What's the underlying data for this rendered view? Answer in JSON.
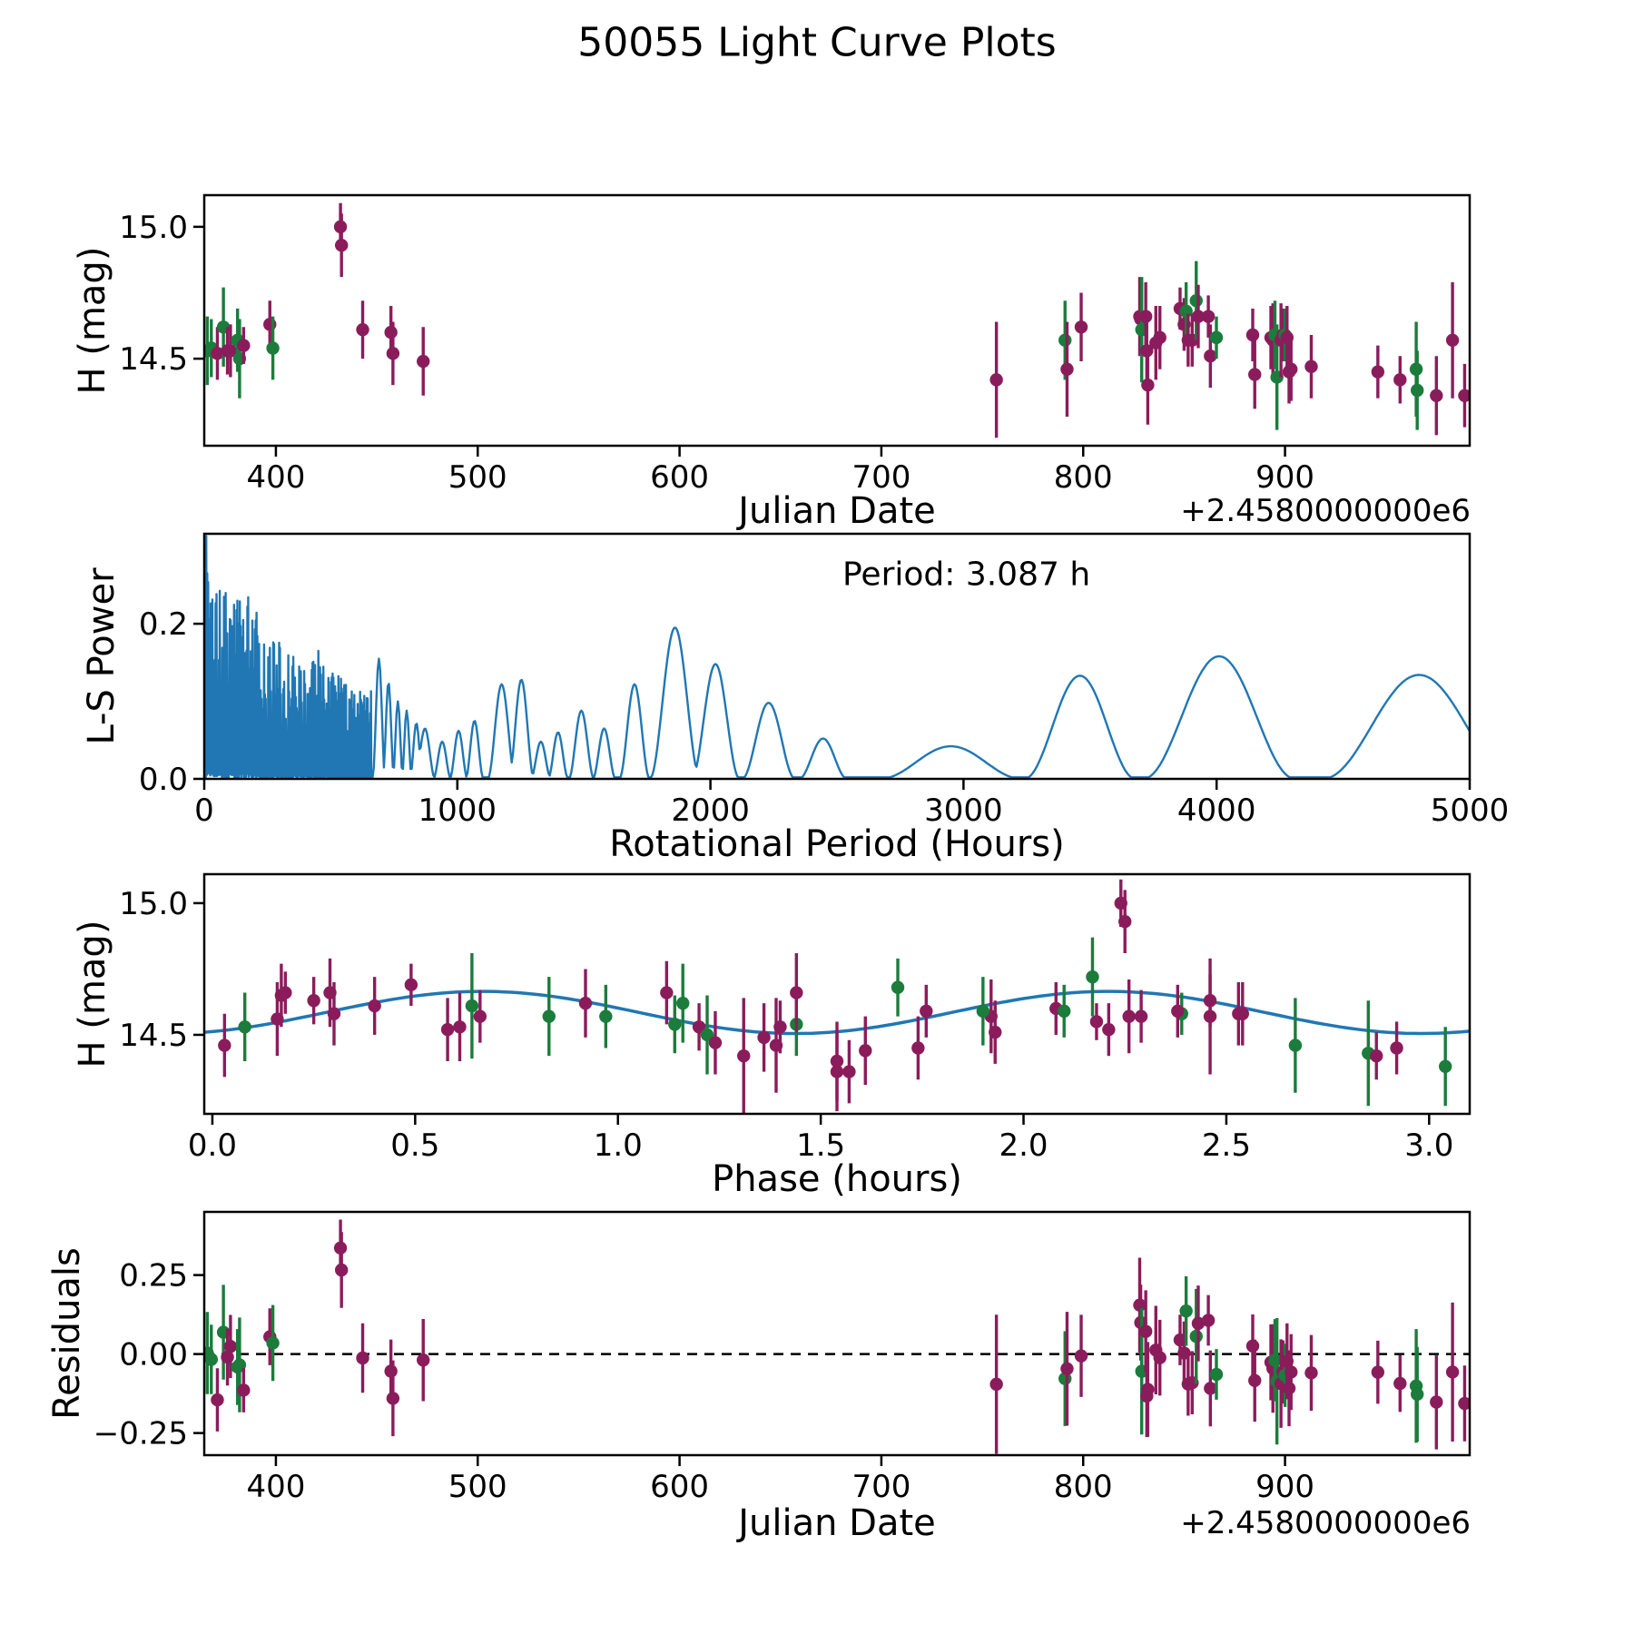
{
  "chart_data": {
    "type": "multi-panel-light-curve",
    "title": "50055 Light Curve Plots",
    "period_hours": 3.087,
    "period_label": "Period: 3.087 h",
    "colors": {
      "purple": "#8B1C5C",
      "green": "#1B7C3B",
      "blue": "#2077B4",
      "axis": "#000000"
    },
    "panels": [
      {
        "id": "jd",
        "type": "errorbar-scatter",
        "xlabel": "Julian Date",
        "ylabel": "H (mag)",
        "x_offset_label": "+2.4580000000e6",
        "xlim": [
          364.5,
          991.5
        ],
        "ylim": [
          14.17,
          15.12
        ],
        "xtick_values": [
          400,
          500,
          600,
          700,
          800,
          900
        ],
        "xtick_labels": [
          "400",
          "500",
          "600",
          "700",
          "800",
          "900"
        ],
        "ytick_values": [
          15.0,
          14.5
        ],
        "ytick_labels": [
          "15.0",
          "14.5"
        ],
        "x_field": "jd",
        "y_field": "mag"
      },
      {
        "id": "periodogram",
        "type": "line",
        "xlabel": "Rotational Period (Hours)",
        "ylabel": "L-S Power",
        "annotation": "Period: 3.087 h",
        "xlim": [
          0,
          5000
        ],
        "ylim": [
          0,
          0.316
        ],
        "xtick_values": [
          0,
          1000,
          2000,
          3000,
          4000,
          5000
        ],
        "xtick_labels": [
          "0",
          "1000",
          "2000",
          "3000",
          "4000",
          "5000"
        ],
        "ytick_values": [
          0.0,
          0.2
        ],
        "ytick_labels": [
          "0.0",
          "0.2"
        ],
        "dense_region": {
          "x_end": 660,
          "envelope": [
            [
              0,
              0.31
            ],
            [
              20,
              0.31
            ],
            [
              40,
              0.29
            ],
            [
              80,
              0.26
            ],
            [
              120,
              0.24
            ],
            [
              160,
              0.25
            ],
            [
              200,
              0.22
            ],
            [
              250,
              0.19
            ],
            [
              300,
              0.175
            ],
            [
              350,
              0.16
            ],
            [
              400,
              0.15
            ],
            [
              450,
              0.18
            ],
            [
              500,
              0.15
            ],
            [
              550,
              0.13
            ],
            [
              600,
              0.12
            ],
            [
              660,
              0.12
            ]
          ]
        },
        "lobes": [
          [
            690,
            25,
            0.155
          ],
          [
            728,
            22,
            0.125
          ],
          [
            765,
            20,
            0.1
          ],
          [
            800,
            20,
            0.088
          ],
          [
            838,
            25,
            0.072
          ],
          [
            872,
            40,
            0.065
          ],
          [
            940,
            35,
            0.048
          ],
          [
            1005,
            35,
            0.062
          ],
          [
            1068,
            35,
            0.075
          ],
          [
            1175,
            55,
            0.122
          ],
          [
            1253,
            50,
            0.128
          ],
          [
            1330,
            40,
            0.048
          ],
          [
            1398,
            40,
            0.06
          ],
          [
            1490,
            50,
            0.088
          ],
          [
            1580,
            45,
            0.065
          ],
          [
            1700,
            60,
            0.122
          ],
          [
            1860,
            100,
            0.195
          ],
          [
            2020,
            95,
            0.148
          ],
          [
            2230,
            105,
            0.098
          ],
          [
            2445,
            95,
            0.052
          ],
          [
            2950,
            280,
            0.042
          ],
          [
            3460,
            220,
            0.133
          ],
          [
            4010,
            300,
            0.158
          ],
          [
            4800,
            380,
            0.134
          ]
        ]
      },
      {
        "id": "phase",
        "type": "errorbar-scatter",
        "xlabel": "Phase (hours)",
        "ylabel": "H (mag)",
        "xlim": [
          -0.02,
          3.1
        ],
        "ylim": [
          14.2,
          15.11
        ],
        "xtick_values": [
          0.0,
          0.5,
          1.0,
          1.5,
          2.0,
          2.5,
          3.0
        ],
        "xtick_labels": [
          "0.0",
          "0.5",
          "1.0",
          "1.5",
          "2.0",
          "2.5",
          "3.0"
        ],
        "ytick_values": [
          15.0,
          14.5
        ],
        "ytick_labels": [
          "15.0",
          "14.5"
        ],
        "x_field": "phase",
        "y_field": "mag",
        "model_curve": {
          "mean": 14.585,
          "amplitude": 0.08,
          "period_hours": 1.5435,
          "phase_offset": 0.28,
          "x_start": -0.02,
          "x_end": 3.1
        }
      },
      {
        "id": "residuals",
        "type": "errorbar-scatter",
        "xlabel": "Julian Date",
        "ylabel": "Residuals",
        "x_offset_label": "+2.4580000000e6",
        "xlim": [
          364.5,
          991.5
        ],
        "ylim": [
          -0.32,
          0.45
        ],
        "xtick_values": [
          400,
          500,
          600,
          700,
          800,
          900
        ],
        "xtick_labels": [
          "400",
          "500",
          "600",
          "700",
          "800",
          "900"
        ],
        "ytick_values": [
          0.25,
          0.0,
          -0.25
        ],
        "ytick_labels": [
          "0.25",
          "0.00",
          "−0.25"
        ],
        "x_field": "jd",
        "y_field": "residual",
        "zero_line": true
      }
    ],
    "observations": {
      "fields": [
        "jd",
        "phase",
        "mag",
        "err",
        "band"
      ],
      "rows": [
        [
          366.0,
          0.08,
          14.53,
          0.13,
          "green"
        ],
        [
          368.0,
          1.14,
          14.54,
          0.11,
          "green"
        ],
        [
          371.0,
          2.21,
          14.52,
          0.1,
          "purple"
        ],
        [
          374.0,
          1.16,
          14.62,
          0.15,
          "green"
        ],
        [
          376.0,
          1.2,
          14.53,
          0.09,
          "purple"
        ],
        [
          377.5,
          1.4,
          14.53,
          0.1,
          "purple"
        ],
        [
          381.0,
          0.97,
          14.57,
          0.12,
          "green"
        ],
        [
          382.0,
          1.22,
          14.5,
          0.15,
          "green"
        ],
        [
          384.0,
          2.18,
          14.55,
          0.07,
          "purple"
        ],
        [
          397.0,
          0.25,
          14.63,
          0.09,
          "purple"
        ],
        [
          398.5,
          1.44,
          14.54,
          0.12,
          "green"
        ],
        [
          432.0,
          2.24,
          15.0,
          0.09,
          "purple"
        ],
        [
          432.5,
          2.25,
          14.93,
          0.12,
          "purple"
        ],
        [
          443.0,
          0.4,
          14.61,
          0.11,
          "purple"
        ],
        [
          457.0,
          2.08,
          14.6,
          0.1,
          "purple"
        ],
        [
          458.0,
          0.58,
          14.52,
          0.12,
          "purple"
        ],
        [
          473.0,
          1.36,
          14.49,
          0.13,
          "purple"
        ],
        [
          757.0,
          1.31,
          14.42,
          0.22,
          "purple"
        ],
        [
          791.0,
          0.83,
          14.57,
          0.15,
          "green"
        ],
        [
          792.0,
          1.39,
          14.46,
          0.18,
          "purple"
        ],
        [
          799.0,
          0.92,
          14.62,
          0.13,
          "purple"
        ],
        [
          828.0,
          1.44,
          14.66,
          0.15,
          "purple"
        ],
        [
          828.5,
          0.17,
          14.65,
          0.12,
          "purple"
        ],
        [
          829.0,
          0.64,
          14.61,
          0.2,
          "green"
        ],
        [
          831.0,
          0.29,
          14.66,
          0.13,
          "purple"
        ],
        [
          831.5,
          0.61,
          14.53,
          0.13,
          "purple"
        ],
        [
          832.0,
          1.54,
          14.4,
          0.15,
          "purple"
        ],
        [
          836.0,
          0.16,
          14.56,
          0.14,
          "purple"
        ],
        [
          838.0,
          0.3,
          14.58,
          0.12,
          "purple"
        ],
        [
          848.0,
          0.49,
          14.69,
          0.08,
          "purple"
        ],
        [
          850.0,
          2.46,
          14.63,
          0.1,
          "purple"
        ],
        [
          851.0,
          1.69,
          14.68,
          0.11,
          "green"
        ],
        [
          852.0,
          0.66,
          14.57,
          0.1,
          "purple"
        ],
        [
          854.0,
          2.29,
          14.57,
          0.1,
          "purple"
        ],
        [
          856.0,
          2.17,
          14.72,
          0.15,
          "green"
        ],
        [
          857.0,
          1.12,
          14.66,
          0.12,
          "purple"
        ],
        [
          862.0,
          0.18,
          14.66,
          0.08,
          "purple"
        ],
        [
          863.0,
          1.93,
          14.51,
          0.12,
          "purple"
        ],
        [
          866.0,
          2.39,
          14.58,
          0.08,
          "green"
        ],
        [
          884.0,
          1.76,
          14.59,
          0.1,
          "purple"
        ],
        [
          885.0,
          1.61,
          14.44,
          0.13,
          "purple"
        ],
        [
          893.0,
          2.53,
          14.58,
          0.12,
          "purple"
        ],
        [
          894.0,
          1.92,
          14.57,
          0.14,
          "purple"
        ],
        [
          895.0,
          1.9,
          14.59,
          0.13,
          "green"
        ],
        [
          896.0,
          2.85,
          14.43,
          0.2,
          "green"
        ],
        [
          898.0,
          2.26,
          14.57,
          0.14,
          "purple"
        ],
        [
          899.0,
          2.38,
          14.59,
          0.1,
          "purple"
        ],
        [
          900.0,
          2.1,
          14.59,
          0.1,
          "green"
        ],
        [
          901.0,
          2.54,
          14.58,
          0.12,
          "purple"
        ],
        [
          902.0,
          1.74,
          14.45,
          0.12,
          "purple"
        ],
        [
          903.0,
          0.03,
          14.46,
          0.12,
          "purple"
        ],
        [
          913.0,
          1.24,
          14.47,
          0.12,
          "purple"
        ],
        [
          946.0,
          2.92,
          14.45,
          0.1,
          "purple"
        ],
        [
          957.0,
          2.87,
          14.42,
          0.09,
          "purple"
        ],
        [
          965.0,
          2.67,
          14.46,
          0.18,
          "green"
        ],
        [
          965.5,
          3.04,
          14.38,
          0.15,
          "green"
        ],
        [
          975.0,
          1.54,
          14.36,
          0.15,
          "purple"
        ],
        [
          983.0,
          2.46,
          14.57,
          0.22,
          "purple"
        ],
        [
          989.0,
          1.57,
          14.36,
          0.12,
          "purple"
        ]
      ]
    }
  }
}
